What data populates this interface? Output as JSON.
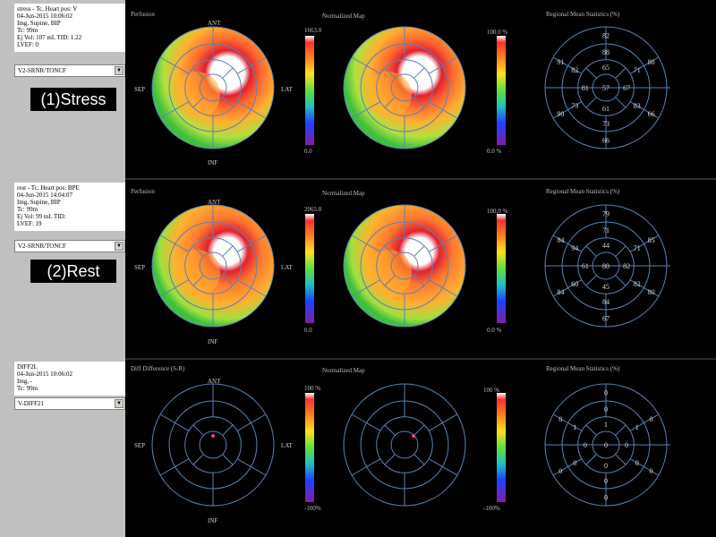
{
  "panels": [
    {
      "info": [
        "stress - Tc, Heart pos: V",
        "04-Jun-2015 10:06:02",
        "Img, Supine, BIP",
        "Tc: 99m",
        "Ej Vol: 107 mL  TID: 1.22",
        "LVEF: 0"
      ],
      "dropdown": "V2-SRNR/TONCF",
      "phase_label": "(1)Stress",
      "left_title": "Perfusion",
      "mid_title": "Normalized Map",
      "right_title": "Regional Mean Statistics (%)",
      "left_scale_top": "1663.0",
      "left_scale_bottom": "0.0",
      "mid_scale_top": "100.0 %",
      "mid_scale_bottom": "0.0 %",
      "right_values": [
        "82",
        "80",
        "66",
        "66",
        "90",
        "91",
        "88",
        "71",
        "83",
        "73",
        "73",
        "82",
        "65",
        "67",
        "61",
        "81",
        "57"
      ]
    },
    {
      "info": [
        "rest - Tc, Heart pos: BPE",
        "04-Jun-2015 14:04:07",
        "Img, Supine, BIP",
        "Tc: 99m",
        "Ej Vol: 99 mL  TID:",
        "LVEF: 19"
      ],
      "dropdown": "V2-SRNR/TONCF",
      "phase_label": "(2)Rest",
      "left_title": "Perfusion",
      "mid_title": "Normalized Map",
      "right_title": "Regional Mean Statistics (%)",
      "left_scale_top": "2065.0",
      "left_scale_bottom": "0.0",
      "mid_scale_top": "100.0 %",
      "mid_scale_bottom": "0.0 %",
      "right_values": [
        "79",
        "85",
        "80",
        "67",
        "84",
        "84",
        "71",
        "71",
        "82",
        "84",
        "60",
        "94",
        "44",
        "82",
        "45",
        "61",
        "80"
      ]
    },
    {
      "info": [
        "DIFF2L",
        "04-Jun-2015 10:06:02",
        "Img, -",
        "Tc: 99m"
      ],
      "dropdown": "V-DIFF21",
      "phase_label": "",
      "left_title": "Diff Difference (S-R)",
      "mid_title": "Normalized Map",
      "right_title": "Regional Mean Statistics (%)",
      "left_scale_top": "100 %",
      "left_scale_bottom": "-100%",
      "mid_scale_top": "100 %",
      "mid_scale_bottom": "-100%",
      "right_values": [
        "0",
        "0",
        "0",
        "0",
        "0",
        "0",
        "0",
        "1",
        "0",
        "0",
        "0",
        "1",
        "1",
        "0",
        "0",
        "0",
        "0"
      ]
    }
  ],
  "orientation": {
    "anterior": "ANT",
    "septal": "SEP",
    "lateral": "LAT",
    "inferior": "INF"
  },
  "colors": {
    "background": "#000000",
    "sidebar": "#c0c0c0",
    "ring_lines": "#5a82b4",
    "label_text": "#bdbdbd"
  }
}
